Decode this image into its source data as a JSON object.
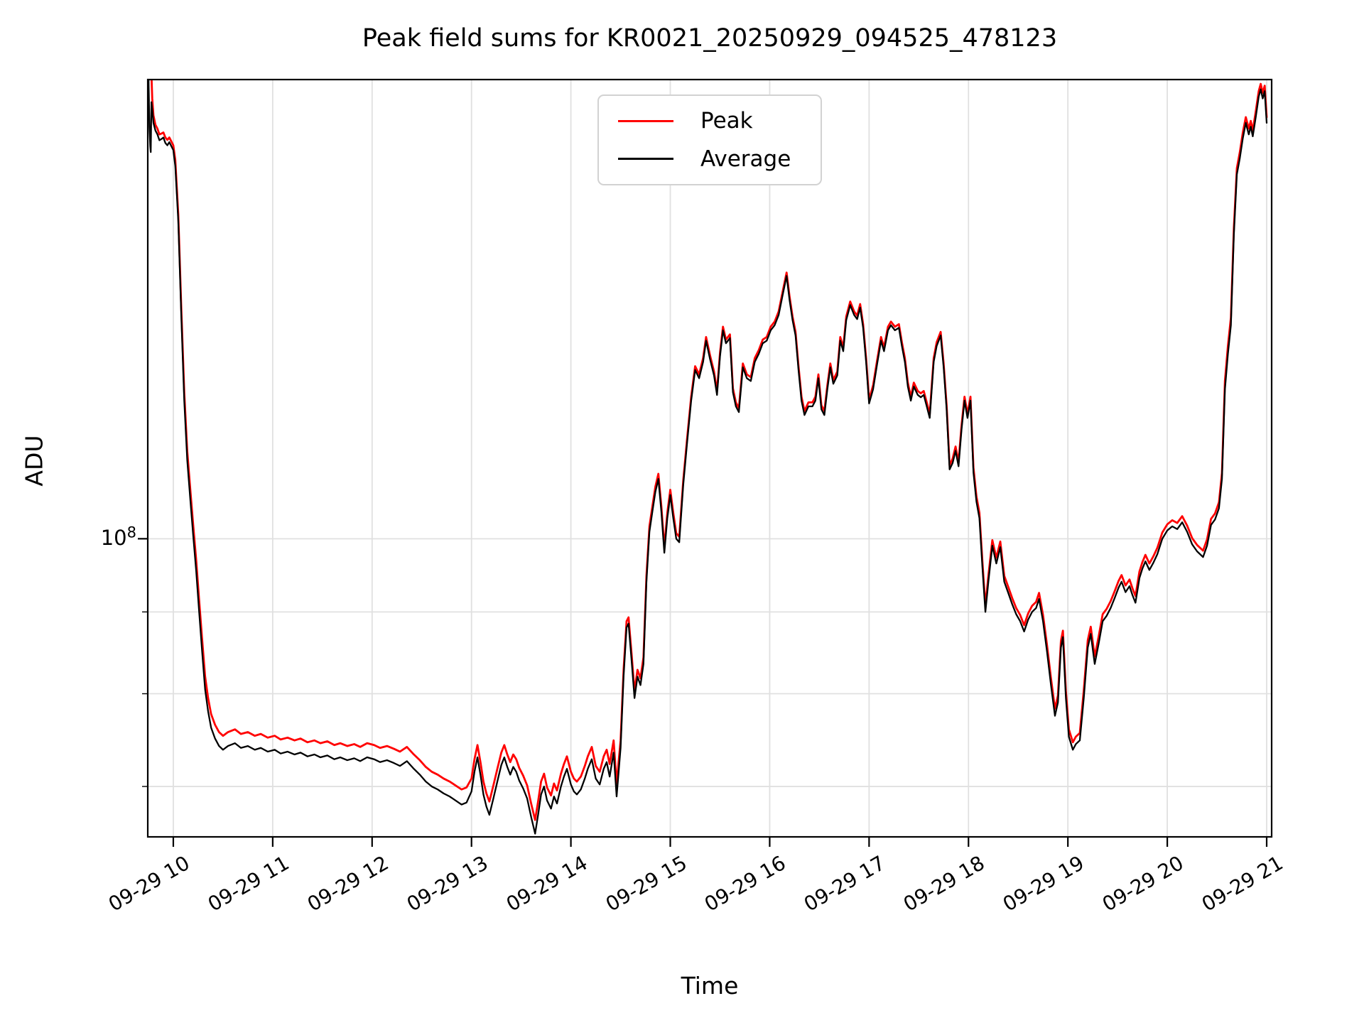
{
  "title": "Peak field sums for KR0021_20250929_094525_478123",
  "axes": {
    "xlabel": "Time",
    "ylabel": "ADU",
    "y_major_tick_label": {
      "base": "10",
      "exp": "8"
    }
  },
  "legend": {
    "entries": [
      {
        "label": "Peak",
        "color": "#ff0000"
      },
      {
        "label": "Average",
        "color": "#000000"
      }
    ]
  },
  "chart_data": {
    "type": "line",
    "title": "Peak field sums for KR0021_20250929_094525_478123",
    "xlabel": "Time",
    "ylabel": "ADU",
    "y_scale": "log",
    "grid": true,
    "background": "#ffffff",
    "grid_color": "#e0e0e0",
    "date": "09-29",
    "xlim_hours": [
      9.743,
      21.05
    ],
    "ylim": [
      65100000,
      193700000
    ],
    "x_ticks": [
      {
        "hour": 10,
        "label": "09-29 10"
      },
      {
        "hour": 11,
        "label": "09-29 11"
      },
      {
        "hour": 12,
        "label": "09-29 12"
      },
      {
        "hour": 13,
        "label": "09-29 13"
      },
      {
        "hour": 14,
        "label": "09-29 14"
      },
      {
        "hour": 15,
        "label": "09-29 15"
      },
      {
        "hour": 16,
        "label": "09-29 16"
      },
      {
        "hour": 17,
        "label": "09-29 17"
      },
      {
        "hour": 18,
        "label": "09-29 18"
      },
      {
        "hour": 19,
        "label": "09-29 19"
      },
      {
        "hour": 20,
        "label": "09-29 20"
      },
      {
        "hour": 21,
        "label": "09-29 21"
      }
    ],
    "y_major_gridlines": [
      100000000
    ],
    "y_minor_gridlines": [
      70000000,
      80000000,
      90000000
    ],
    "value_unit": 10000000,
    "t_hours": [
      9.745,
      9.752,
      9.76,
      9.768,
      9.773,
      9.78,
      9.788,
      9.8,
      9.82,
      9.84,
      9.86,
      9.88,
      9.9,
      9.92,
      9.94,
      9.96,
      9.98,
      10.0,
      10.02,
      10.05,
      10.08,
      10.11,
      10.14,
      10.17,
      10.2,
      10.23,
      10.26,
      10.29,
      10.32,
      10.35,
      10.38,
      10.42,
      10.46,
      10.5,
      10.55,
      10.62,
      10.68,
      10.75,
      10.82,
      10.88,
      10.95,
      11.02,
      11.08,
      11.15,
      11.22,
      11.28,
      11.35,
      11.42,
      11.48,
      11.55,
      11.62,
      11.68,
      11.75,
      11.82,
      11.88,
      11.95,
      12.02,
      12.08,
      12.15,
      12.22,
      12.28,
      12.35,
      12.42,
      12.48,
      12.54,
      12.6,
      12.66,
      12.72,
      12.78,
      12.84,
      12.9,
      12.95,
      13.0,
      13.03,
      13.06,
      13.09,
      13.12,
      13.15,
      13.18,
      13.22,
      13.26,
      13.3,
      13.33,
      13.36,
      13.39,
      13.42,
      13.45,
      13.48,
      13.52,
      13.56,
      13.6,
      13.64,
      13.67,
      13.7,
      13.73,
      13.76,
      13.8,
      13.83,
      13.86,
      13.9,
      13.93,
      13.96,
      14.0,
      14.03,
      14.06,
      14.1,
      14.14,
      14.17,
      14.21,
      14.25,
      14.29,
      14.33,
      14.36,
      14.39,
      14.43,
      14.46,
      14.5,
      14.53,
      14.56,
      14.58,
      14.61,
      14.64,
      14.67,
      14.7,
      14.73,
      14.76,
      14.79,
      14.82,
      14.85,
      14.88,
      14.91,
      14.94,
      14.97,
      15.0,
      15.03,
      15.06,
      15.09,
      15.13,
      15.17,
      15.21,
      15.25,
      15.29,
      15.33,
      15.36,
      15.4,
      15.44,
      15.47,
      15.5,
      15.53,
      15.56,
      15.6,
      15.63,
      15.66,
      15.69,
      15.73,
      15.77,
      15.81,
      15.85,
      15.89,
      15.93,
      15.97,
      16.01,
      16.05,
      16.09,
      16.13,
      16.17,
      16.2,
      16.23,
      16.26,
      16.29,
      16.32,
      16.35,
      16.39,
      16.43,
      16.46,
      16.49,
      16.52,
      16.55,
      16.58,
      16.61,
      16.64,
      16.68,
      16.71,
      16.74,
      16.77,
      16.81,
      16.85,
      16.88,
      16.91,
      16.94,
      16.97,
      17.0,
      17.04,
      17.08,
      17.12,
      17.15,
      17.19,
      17.22,
      17.26,
      17.3,
      17.33,
      17.36,
      17.39,
      17.42,
      17.45,
      17.49,
      17.52,
      17.55,
      17.58,
      17.61,
      17.65,
      17.68,
      17.72,
      17.75,
      17.78,
      17.81,
      17.84,
      17.87,
      17.9,
      17.93,
      17.96,
      17.99,
      18.02,
      18.05,
      18.08,
      18.11,
      18.14,
      18.17,
      18.2,
      18.24,
      18.28,
      18.32,
      18.36,
      18.4,
      18.44,
      18.48,
      18.52,
      18.56,
      18.6,
      18.64,
      18.68,
      18.71,
      18.75,
      18.79,
      18.83,
      18.87,
      18.9,
      18.93,
      18.95,
      18.98,
      19.01,
      19.05,
      19.08,
      19.12,
      19.16,
      19.2,
      19.23,
      19.27,
      19.31,
      19.35,
      19.39,
      19.43,
      19.47,
      19.51,
      19.54,
      19.58,
      19.62,
      19.65,
      19.68,
      19.72,
      19.75,
      19.78,
      19.82,
      19.86,
      19.9,
      19.95,
      20.0,
      20.05,
      20.1,
      20.15,
      20.2,
      20.25,
      20.3,
      20.36,
      20.4,
      20.44,
      20.48,
      20.52,
      20.55,
      20.58,
      20.61,
      20.64,
      20.67,
      20.7,
      20.73,
      20.76,
      20.79,
      20.82,
      20.84,
      20.86,
      20.89,
      20.92,
      20.94,
      20.96,
      20.98,
      21.0
    ],
    "series": [
      {
        "name": "Peak",
        "color": "#ff0000",
        "values_e7": [
          26.0,
          24.0,
          22.5,
          21.0,
          19.9,
          19.5,
          18.85,
          18.4,
          18.15,
          18.05,
          17.9,
          17.92,
          17.95,
          17.82,
          17.76,
          17.82,
          17.72,
          17.62,
          17.25,
          15.95,
          13.95,
          12.35,
          11.35,
          10.75,
          10.2,
          9.7,
          9.15,
          8.65,
          8.2,
          7.95,
          7.77,
          7.65,
          7.57,
          7.53,
          7.57,
          7.6,
          7.55,
          7.57,
          7.53,
          7.55,
          7.51,
          7.53,
          7.49,
          7.51,
          7.48,
          7.5,
          7.46,
          7.48,
          7.45,
          7.47,
          7.43,
          7.45,
          7.42,
          7.44,
          7.41,
          7.45,
          7.43,
          7.4,
          7.42,
          7.39,
          7.36,
          7.41,
          7.33,
          7.27,
          7.2,
          7.15,
          7.12,
          7.08,
          7.05,
          7.01,
          6.97,
          6.99,
          7.08,
          7.28,
          7.43,
          7.25,
          7.05,
          6.93,
          6.85,
          7.01,
          7.18,
          7.35,
          7.43,
          7.33,
          7.25,
          7.33,
          7.28,
          7.19,
          7.11,
          7.01,
          6.83,
          6.67,
          6.85,
          7.05,
          7.13,
          6.99,
          6.91,
          7.03,
          6.96,
          7.13,
          7.23,
          7.31,
          7.15,
          7.08,
          7.05,
          7.1,
          7.21,
          7.31,
          7.41,
          7.21,
          7.15,
          7.31,
          7.38,
          7.23,
          7.48,
          7.03,
          7.48,
          8.28,
          8.88,
          8.93,
          8.48,
          8.03,
          8.28,
          8.18,
          8.43,
          9.48,
          10.18,
          10.48,
          10.78,
          10.98,
          10.48,
          9.88,
          10.38,
          10.73,
          10.38,
          10.08,
          10.03,
          10.87,
          11.57,
          12.27,
          12.82,
          12.67,
          12.97,
          13.37,
          13.02,
          12.72,
          12.37,
          13.07,
          13.57,
          13.32,
          13.42,
          12.42,
          12.17,
          12.07,
          12.87,
          12.67,
          12.62,
          12.97,
          13.12,
          13.32,
          13.37,
          13.57,
          13.67,
          13.87,
          14.27,
          14.67,
          14.17,
          13.77,
          13.47,
          12.82,
          12.27,
          12.02,
          12.17,
          12.17,
          12.27,
          12.67,
          12.12,
          12.02,
          12.47,
          12.87,
          12.57,
          12.72,
          13.37,
          13.17,
          13.77,
          14.07,
          13.87,
          13.79,
          14.02,
          13.62,
          12.97,
          12.22,
          12.47,
          12.92,
          13.37,
          13.17,
          13.57,
          13.67,
          13.57,
          13.62,
          13.27,
          12.97,
          12.52,
          12.27,
          12.52,
          12.37,
          12.33,
          12.37,
          12.17,
          11.97,
          12.97,
          13.27,
          13.47,
          12.87,
          12.12,
          11.12,
          11.22,
          11.42,
          11.17,
          11.77,
          12.27,
          11.97,
          12.27,
          11.08,
          10.63,
          10.38,
          9.68,
          9.08,
          9.48,
          9.98,
          9.73,
          9.96,
          9.48,
          9.33,
          9.18,
          9.05,
          8.96,
          8.83,
          8.98,
          9.08,
          9.13,
          9.25,
          8.96,
          8.58,
          8.18,
          7.83,
          7.98,
          8.63,
          8.76,
          8.03,
          7.6,
          7.46,
          7.52,
          7.56,
          8.04,
          8.64,
          8.81,
          8.44,
          8.69,
          8.97,
          9.04,
          9.14,
          9.27,
          9.41,
          9.49,
          9.35,
          9.43,
          9.31,
          9.21,
          9.54,
          9.67,
          9.77,
          9.65,
          9.75,
          9.87,
          10.09,
          10.21,
          10.27,
          10.23,
          10.33,
          10.19,
          10.01,
          9.91,
          9.83,
          9.99,
          10.29,
          10.37,
          10.54,
          10.99,
          12.55,
          13.2,
          13.75,
          15.65,
          17.05,
          17.45,
          17.95,
          18.35,
          18.05,
          18.25,
          18.0,
          18.5,
          19.05,
          19.25,
          19.0,
          19.2,
          18.35
        ]
      },
      {
        "name": "Average",
        "color": "#000000",
        "values_e7": [
          21.0,
          19.2,
          18.1,
          17.6,
          17.45,
          18.75,
          18.55,
          18.2,
          18.0,
          17.9,
          17.75,
          17.78,
          17.82,
          17.68,
          17.62,
          17.7,
          17.6,
          17.5,
          17.1,
          15.8,
          13.8,
          12.2,
          11.2,
          10.6,
          10.05,
          9.55,
          9.0,
          8.5,
          8.05,
          7.8,
          7.62,
          7.5,
          7.42,
          7.38,
          7.42,
          7.45,
          7.4,
          7.42,
          7.38,
          7.4,
          7.36,
          7.38,
          7.34,
          7.36,
          7.33,
          7.35,
          7.31,
          7.33,
          7.3,
          7.32,
          7.28,
          7.3,
          7.27,
          7.29,
          7.26,
          7.3,
          7.28,
          7.25,
          7.27,
          7.24,
          7.21,
          7.26,
          7.18,
          7.12,
          7.05,
          7.0,
          6.97,
          6.93,
          6.9,
          6.86,
          6.82,
          6.84,
          6.95,
          7.15,
          7.3,
          7.12,
          6.92,
          6.8,
          6.72,
          6.88,
          7.05,
          7.22,
          7.3,
          7.2,
          7.12,
          7.2,
          7.15,
          7.06,
          6.98,
          6.88,
          6.7,
          6.54,
          6.72,
          6.92,
          7.0,
          6.86,
          6.78,
          6.9,
          6.83,
          7.0,
          7.1,
          7.18,
          7.02,
          6.95,
          6.92,
          6.97,
          7.08,
          7.18,
          7.28,
          7.08,
          7.02,
          7.18,
          7.25,
          7.1,
          7.35,
          6.9,
          7.4,
          8.2,
          8.8,
          8.85,
          8.4,
          7.95,
          8.2,
          8.1,
          8.35,
          9.4,
          10.1,
          10.4,
          10.7,
          10.9,
          10.4,
          9.8,
          10.3,
          10.65,
          10.3,
          10.0,
          9.95,
          10.8,
          11.5,
          12.2,
          12.75,
          12.6,
          12.9,
          13.3,
          12.95,
          12.65,
          12.3,
          13.0,
          13.5,
          13.25,
          13.35,
          12.35,
          12.1,
          12.0,
          12.8,
          12.6,
          12.55,
          12.9,
          13.05,
          13.25,
          13.3,
          13.5,
          13.6,
          13.8,
          14.2,
          14.6,
          14.1,
          13.7,
          13.4,
          12.75,
          12.2,
          11.95,
          12.1,
          12.1,
          12.2,
          12.6,
          12.05,
          11.95,
          12.4,
          12.8,
          12.5,
          12.65,
          13.3,
          13.1,
          13.7,
          14.0,
          13.8,
          13.72,
          13.95,
          13.55,
          12.9,
          12.15,
          12.4,
          12.85,
          13.3,
          13.1,
          13.5,
          13.6,
          13.5,
          13.55,
          13.2,
          12.9,
          12.45,
          12.2,
          12.45,
          12.3,
          12.26,
          12.3,
          12.1,
          11.9,
          12.9,
          13.2,
          13.4,
          12.8,
          12.05,
          11.05,
          11.15,
          11.35,
          11.1,
          11.7,
          12.2,
          11.9,
          12.2,
          11.0,
          10.55,
          10.3,
          9.6,
          9.0,
          9.4,
          9.9,
          9.65,
          9.88,
          9.4,
          9.25,
          9.1,
          8.97,
          8.88,
          8.75,
          8.9,
          9.0,
          9.05,
          9.17,
          8.88,
          8.5,
          8.1,
          7.75,
          7.9,
          8.55,
          8.68,
          7.95,
          7.52,
          7.38,
          7.44,
          7.48,
          7.95,
          8.55,
          8.72,
          8.35,
          8.6,
          8.88,
          8.95,
          9.05,
          9.18,
          9.32,
          9.4,
          9.26,
          9.34,
          9.22,
          9.12,
          9.45,
          9.58,
          9.68,
          9.56,
          9.66,
          9.78,
          10.0,
          10.12,
          10.18,
          10.14,
          10.24,
          10.1,
          9.92,
          9.82,
          9.74,
          9.9,
          10.2,
          10.28,
          10.45,
          10.9,
          12.4,
          13.05,
          13.6,
          15.5,
          16.9,
          17.3,
          17.8,
          18.2,
          17.9,
          18.1,
          17.85,
          18.35,
          18.9,
          19.1,
          18.85,
          19.05,
          18.2
        ]
      }
    ]
  }
}
